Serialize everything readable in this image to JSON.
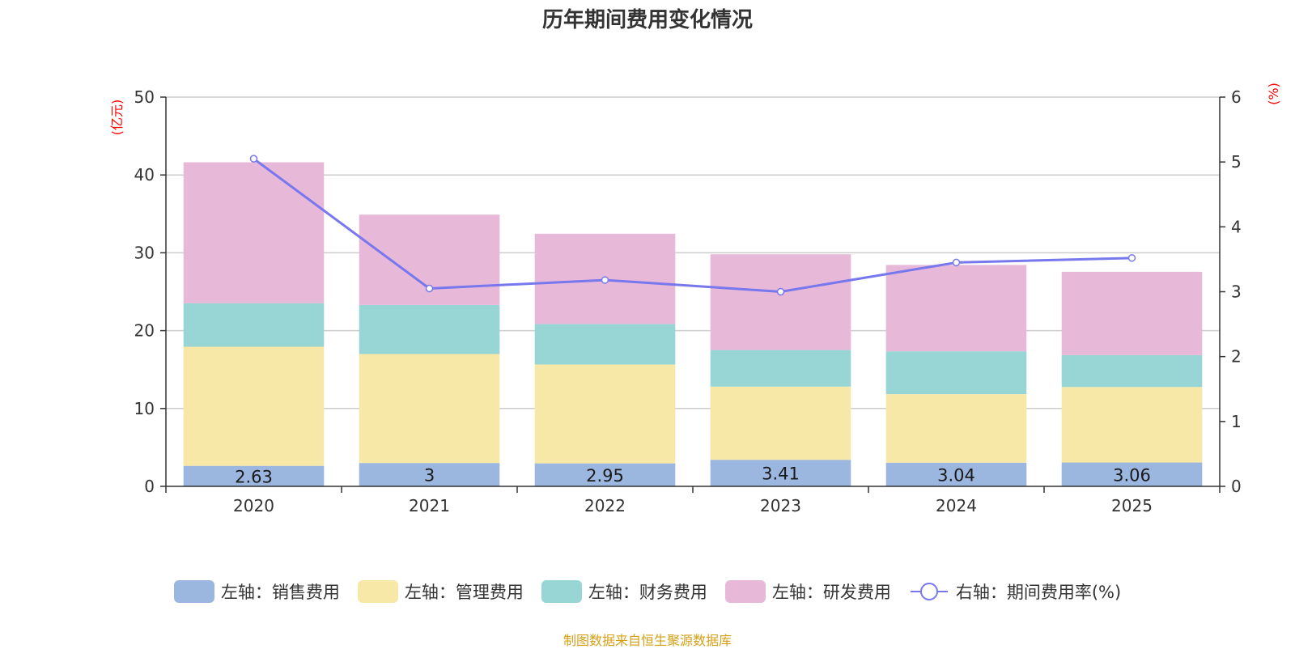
{
  "chart_data": {
    "type": "bar",
    "stacked": true,
    "title": "历年期间费用变化情况",
    "categories": [
      "2020",
      "2021",
      "2022",
      "2023",
      "2024",
      "2025"
    ],
    "left_axis": {
      "unit": "(亿元)",
      "ylim": [
        0,
        50
      ],
      "ticks": [
        0,
        10,
        20,
        30,
        40,
        50
      ]
    },
    "right_axis": {
      "unit": "(%)",
      "ylim": [
        0,
        6
      ],
      "ticks": [
        0,
        1,
        2,
        3,
        4,
        5,
        6
      ]
    },
    "series": [
      {
        "name": "左轴：销售费用",
        "type": "bar",
        "axis": "left",
        "color": "#9bb7e0",
        "values": [
          2.63,
          3,
          2.95,
          3.41,
          3.04,
          3.06
        ],
        "labels": [
          "2.63",
          "3",
          "2.95",
          "3.41",
          "3.04",
          "3.06"
        ]
      },
      {
        "name": "左轴：管理费用",
        "type": "bar",
        "axis": "left",
        "color": "#f8e8a8",
        "values": [
          15.3,
          14.0,
          12.7,
          9.4,
          8.8,
          9.7
        ]
      },
      {
        "name": "左轴：财务费用",
        "type": "bar",
        "axis": "left",
        "color": "#98d5d5",
        "values": [
          5.6,
          6.3,
          5.2,
          4.7,
          5.5,
          4.1
        ]
      },
      {
        "name": "左轴：研发费用",
        "type": "bar",
        "axis": "left",
        "color": "#e8b8d8",
        "values": [
          18.1,
          11.6,
          11.6,
          12.3,
          11.1,
          10.7
        ]
      },
      {
        "name": "右轴：期间费用率(%)",
        "type": "line",
        "axis": "right",
        "color": "#7777ee",
        "values": [
          5.05,
          3.05,
          3.18,
          3.0,
          3.45,
          3.52
        ]
      }
    ],
    "legend_position": "bottom-center"
  },
  "footer": {
    "source": "制图数据来自恒生聚源数据库"
  }
}
